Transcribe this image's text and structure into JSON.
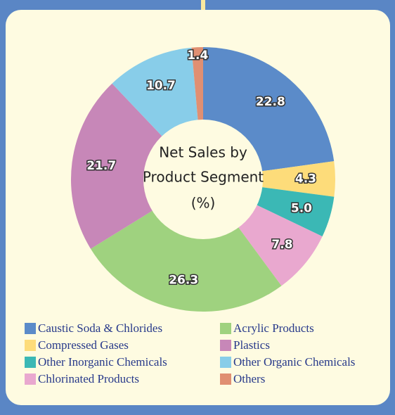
{
  "chart_data": {
    "type": "donut",
    "title": [
      "Net Sales by",
      "Product Segment",
      "(%)"
    ],
    "categories": [
      "Caustic Soda & Chlorides",
      "Compressed Gases",
      "Other Inorganic Chemicals",
      "Chlorinated Products",
      "Acrylic Products",
      "Plastics",
      "Other Organic Chemicals",
      "Others"
    ],
    "values": [
      22.8,
      4.3,
      5.0,
      7.8,
      26.3,
      21.7,
      10.7,
      1.4
    ],
    "value_labels": [
      "22.8",
      "4.3",
      "5.0",
      "7.8",
      "26.3",
      "21.7",
      "10.7",
      "1.4"
    ],
    "colors": [
      "#5b8bc9",
      "#fddc7a",
      "#3bb8b5",
      "#e9a8cf",
      "#9fd27f",
      "#c787b8",
      "#88cde9",
      "#e08f72"
    ]
  }
}
